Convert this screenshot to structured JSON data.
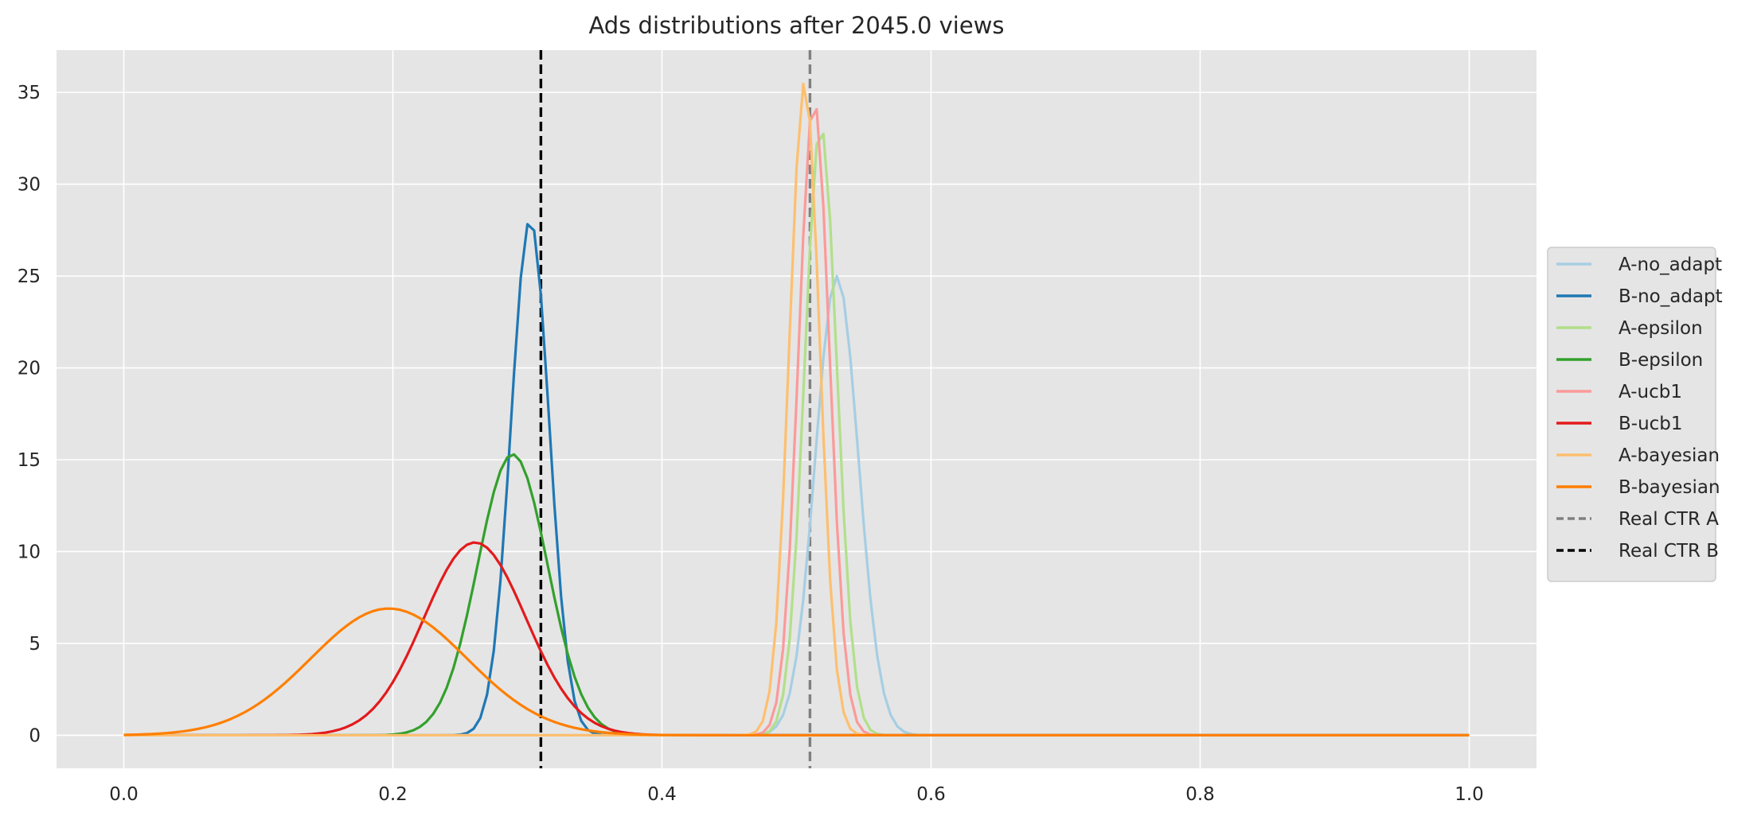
{
  "chart_data": {
    "type": "line",
    "title": "Ads distributions after 2045.0 views",
    "xlabel": "",
    "ylabel": "",
    "xlim": [
      -0.05,
      1.05
    ],
    "ylim": [
      -1.8,
      37.3
    ],
    "xticks": [
      0.0,
      0.2,
      0.4,
      0.6,
      0.8,
      1.0
    ],
    "xtick_labels": [
      "0.0",
      "0.2",
      "0.4",
      "0.6",
      "0.8",
      "1.0"
    ],
    "yticks": [
      0,
      5,
      10,
      15,
      20,
      25,
      30,
      35
    ],
    "ytick_labels": [
      "0",
      "5",
      "10",
      "15",
      "20",
      "25",
      "30",
      "35"
    ],
    "grid": true,
    "legend_position": "center-right-outside",
    "curve_x_range": [
      0.0,
      1.0
    ],
    "series": [
      {
        "name": "A-no_adapt",
        "color": "#a6cee3",
        "mean": 0.53,
        "std": 0.016,
        "peak": 25.0
      },
      {
        "name": "B-no_adapt",
        "color": "#1f78b4",
        "mean": 0.302,
        "std": 0.0142,
        "peak": 28.1
      },
      {
        "name": "A-epsilon",
        "color": "#b2df8a",
        "mean": 0.518,
        "std": 0.012,
        "peak": 33.2
      },
      {
        "name": "B-epsilon",
        "color": "#33a02c",
        "mean": 0.289,
        "std": 0.026,
        "peak": 15.3
      },
      {
        "name": "A-ucb1",
        "color": "#fb9a99",
        "mean": 0.513,
        "std": 0.0115,
        "peak": 34.6
      },
      {
        "name": "B-ucb1",
        "color": "#e31a1c",
        "mean": 0.261,
        "std": 0.038,
        "peak": 10.5
      },
      {
        "name": "A-bayesian",
        "color": "#fdbf6f",
        "mean": 0.506,
        "std": 0.0112,
        "peak": 35.6
      },
      {
        "name": "B-bayesian",
        "color": "#ff7f00",
        "mean": 0.197,
        "std": 0.058,
        "peak": 6.9
      }
    ],
    "vlines": [
      {
        "name": "Real CTR A",
        "x": 0.51,
        "color": "#808080",
        "style": "dashed"
      },
      {
        "name": "Real CTR B",
        "x": 0.31,
        "color": "#000000",
        "style": "dashed"
      }
    ]
  }
}
